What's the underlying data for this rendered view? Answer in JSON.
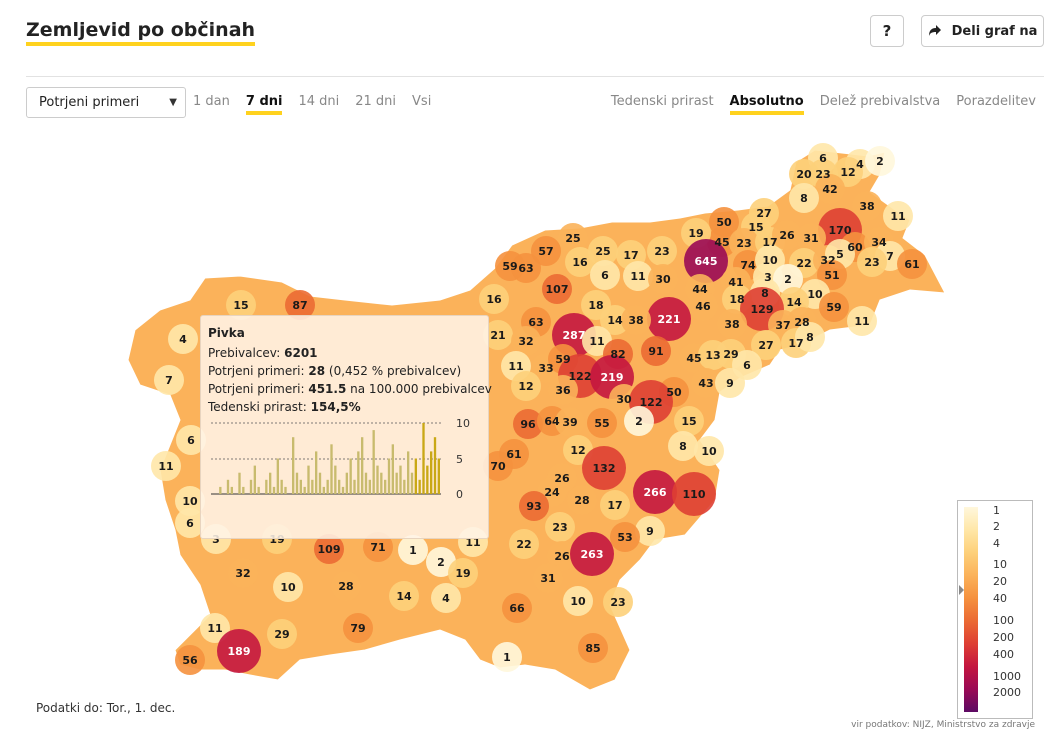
{
  "header": {
    "title": "Zemljevid po občinah",
    "help_label": "?",
    "share_label": "Deli graf na"
  },
  "controls": {
    "metric_select": "Potrjeni primeri",
    "periods": [
      "1 dan",
      "7 dni",
      "14 dni",
      "21 dni",
      "Vsi"
    ],
    "active_period": "7 dni",
    "modes": [
      "Tedenski prirast",
      "Absolutno",
      "Delež prebivalstva",
      "Porazdelitev"
    ],
    "active_mode": "Absolutno"
  },
  "colors": {
    "accent": "#ffd21e",
    "scale": [
      "#fff7dc",
      "#ffe7a8",
      "#fdd07a",
      "#fbb25a",
      "#f5913e",
      "#eb6a33",
      "#de3f33",
      "#c4163f",
      "#9a0a55",
      "#5c0a63"
    ]
  },
  "tooltip": {
    "name": "Pivka",
    "population_label": "Prebivalcev:",
    "population": "6201",
    "cases_label": "Potrjeni primeri:",
    "cases": "28",
    "cases_pct": "(0,452 % prebivalcev)",
    "per100k_label": "Potrjeni primeri:",
    "per100k": "451.5",
    "per100k_suffix": "na 100.000 prebivalcev",
    "growth_label": "Tedenski prirast:",
    "growth": "154,5%",
    "mini_chart_ticks": [
      "10",
      "5",
      "0"
    ],
    "daily_cases": [
      0,
      0,
      1,
      0,
      2,
      1,
      0,
      3,
      1,
      0,
      2,
      4,
      1,
      0,
      2,
      3,
      1,
      5,
      2,
      1,
      0,
      8,
      3,
      2,
      1,
      4,
      2,
      6,
      3,
      1,
      2,
      7,
      4,
      2,
      1,
      3,
      5,
      2,
      6,
      8,
      3,
      2,
      9,
      4,
      3,
      2,
      5,
      7,
      3,
      4,
      2,
      6,
      3,
      5,
      2,
      10,
      4,
      6,
      8,
      5
    ]
  },
  "legend": {
    "labels": [
      "1",
      "2",
      "4",
      "10",
      "20",
      "40",
      "100",
      "200",
      "400",
      "1000",
      "2000"
    ]
  },
  "footer": {
    "data_date": "Podatki do: Tor., 1. dec.",
    "source": "vir podatkov: NIJZ, Ministrstvo za zdravje"
  },
  "map": {
    "values": [
      {
        "v": "6",
        "c": 1
      },
      {
        "v": "4",
        "c": 1
      },
      {
        "v": "2",
        "c": 0
      },
      {
        "v": "20",
        "c": 2
      },
      {
        "v": "23",
        "c": 2
      },
      {
        "v": "12",
        "c": 2
      },
      {
        "v": "42",
        "c": 3
      },
      {
        "v": "8",
        "c": 1
      },
      {
        "v": "38",
        "c": 3
      },
      {
        "v": "11",
        "c": 1
      },
      {
        "v": "170",
        "c": 6
      },
      {
        "v": "27",
        "c": 2
      },
      {
        "v": "50",
        "c": 4
      },
      {
        "v": "15",
        "c": 2
      },
      {
        "v": "45",
        "c": 4
      },
      {
        "v": "23",
        "c": 3
      },
      {
        "v": "17",
        "c": 2
      },
      {
        "v": "26",
        "c": 3
      },
      {
        "v": "31",
        "c": 3
      },
      {
        "v": "60",
        "c": 4
      },
      {
        "v": "34",
        "c": 3
      },
      {
        "v": "7",
        "c": 1
      },
      {
        "v": "61",
        "c": 4
      },
      {
        "v": "25",
        "c": 3
      },
      {
        "v": "25",
        "c": 2
      },
      {
        "v": "19",
        "c": 2
      },
      {
        "v": "23",
        "c": 2
      },
      {
        "v": "57",
        "c": 4
      },
      {
        "v": "16",
        "c": 2
      },
      {
        "v": "17",
        "c": 2
      },
      {
        "v": "645",
        "c": 8
      },
      {
        "v": "74",
        "c": 4
      },
      {
        "v": "10",
        "c": 1
      },
      {
        "v": "22",
        "c": 2
      },
      {
        "v": "32",
        "c": 3
      },
      {
        "v": "5",
        "c": 1
      },
      {
        "v": "51",
        "c": 4
      },
      {
        "v": "23",
        "c": 2
      },
      {
        "v": "59",
        "c": 4
      },
      {
        "v": "63",
        "c": 4
      },
      {
        "v": "6",
        "c": 1
      },
      {
        "v": "11",
        "c": 1
      },
      {
        "v": "30",
        "c": 3
      },
      {
        "v": "41",
        "c": 3
      },
      {
        "v": "3",
        "c": 1
      },
      {
        "v": "2",
        "c": 0
      },
      {
        "v": "10",
        "c": 1
      },
      {
        "v": "107",
        "c": 5
      },
      {
        "v": "44",
        "c": 3
      },
      {
        "v": "8",
        "c": 1
      },
      {
        "v": "14",
        "c": 2
      },
      {
        "v": "59",
        "c": 4
      },
      {
        "v": "18",
        "c": 2
      },
      {
        "v": "46",
        "c": 3
      },
      {
        "v": "18",
        "c": 2
      },
      {
        "v": "129",
        "c": 6
      },
      {
        "v": "16",
        "c": 2
      },
      {
        "v": "221",
        "c": 7
      },
      {
        "v": "38",
        "c": 3
      },
      {
        "v": "37",
        "c": 3
      },
      {
        "v": "28",
        "c": 3
      },
      {
        "v": "11",
        "c": 1
      },
      {
        "v": "15",
        "c": 2
      },
      {
        "v": "87",
        "c": 5
      },
      {
        "v": "14",
        "c": 2
      },
      {
        "v": "38",
        "c": 3
      },
      {
        "v": "63",
        "c": 4
      },
      {
        "v": "287",
        "c": 7
      },
      {
        "v": "11",
        "c": 1
      },
      {
        "v": "27",
        "c": 2
      },
      {
        "v": "17",
        "c": 2
      },
      {
        "v": "8",
        "c": 1
      },
      {
        "v": "4",
        "c": 1
      },
      {
        "v": "21",
        "c": 2
      },
      {
        "v": "32",
        "c": 3
      },
      {
        "v": "82",
        "c": 5
      },
      {
        "v": "91",
        "c": 5
      },
      {
        "v": "45",
        "c": 3
      },
      {
        "v": "13",
        "c": 2
      },
      {
        "v": "29",
        "c": 2
      },
      {
        "v": "6",
        "c": 1
      },
      {
        "v": "7",
        "c": 1
      },
      {
        "v": "11",
        "c": 1
      },
      {
        "v": "33",
        "c": 3
      },
      {
        "v": "59",
        "c": 4
      },
      {
        "v": "122",
        "c": 6
      },
      {
        "v": "219",
        "c": 7
      },
      {
        "v": "43",
        "c": 3
      },
      {
        "v": "9",
        "c": 1
      },
      {
        "v": "12",
        "c": 2
      },
      {
        "v": "36",
        "c": 3
      },
      {
        "v": "50",
        "c": 4
      },
      {
        "v": "30",
        "c": 3
      },
      {
        "v": "122",
        "c": 6
      },
      {
        "v": "96",
        "c": 5
      },
      {
        "v": "64",
        "c": 4
      },
      {
        "v": "39",
        "c": 3
      },
      {
        "v": "55",
        "c": 4
      },
      {
        "v": "2",
        "c": 0
      },
      {
        "v": "15",
        "c": 2
      },
      {
        "v": "6",
        "c": 1
      },
      {
        "v": "8",
        "c": 1
      },
      {
        "v": "10",
        "c": 1
      },
      {
        "v": "11",
        "c": 1
      },
      {
        "v": "70",
        "c": 4
      },
      {
        "v": "61",
        "c": 4
      },
      {
        "v": "12",
        "c": 2
      },
      {
        "v": "132",
        "c": 6
      },
      {
        "v": "26",
        "c": 3
      },
      {
        "v": "266",
        "c": 7
      },
      {
        "v": "110",
        "c": 6
      },
      {
        "v": "24",
        "c": 3
      },
      {
        "v": "28",
        "c": 3
      },
      {
        "v": "17",
        "c": 2
      },
      {
        "v": "93",
        "c": 5
      },
      {
        "v": "10",
        "c": 1
      },
      {
        "v": "6",
        "c": 1
      },
      {
        "v": "23",
        "c": 2
      },
      {
        "v": "9",
        "c": 1
      },
      {
        "v": "53",
        "c": 4
      },
      {
        "v": "22",
        "c": 2
      },
      {
        "v": "26",
        "c": 3
      },
      {
        "v": "263",
        "c": 7
      },
      {
        "v": "11",
        "c": 1
      },
      {
        "v": "109",
        "c": 5
      },
      {
        "v": "71",
        "c": 4
      },
      {
        "v": "1",
        "c": 0
      },
      {
        "v": "2",
        "c": 0
      },
      {
        "v": "19",
        "c": 2
      },
      {
        "v": "32",
        "c": 3
      },
      {
        "v": "10",
        "c": 1
      },
      {
        "v": "28",
        "c": 3
      },
      {
        "v": "14",
        "c": 2
      },
      {
        "v": "4",
        "c": 1
      },
      {
        "v": "31",
        "c": 3
      },
      {
        "v": "10",
        "c": 1
      },
      {
        "v": "23",
        "c": 2
      },
      {
        "v": "66",
        "c": 4
      },
      {
        "v": "79",
        "c": 4
      },
      {
        "v": "11",
        "c": 1
      },
      {
        "v": "29",
        "c": 2
      },
      {
        "v": "189",
        "c": 7
      },
      {
        "v": "56",
        "c": 4
      },
      {
        "v": "85",
        "c": 4
      },
      {
        "v": "1",
        "c": 0
      },
      {
        "v": "3",
        "c": 1
      },
      {
        "v": "19",
        "c": 2
      }
    ]
  }
}
